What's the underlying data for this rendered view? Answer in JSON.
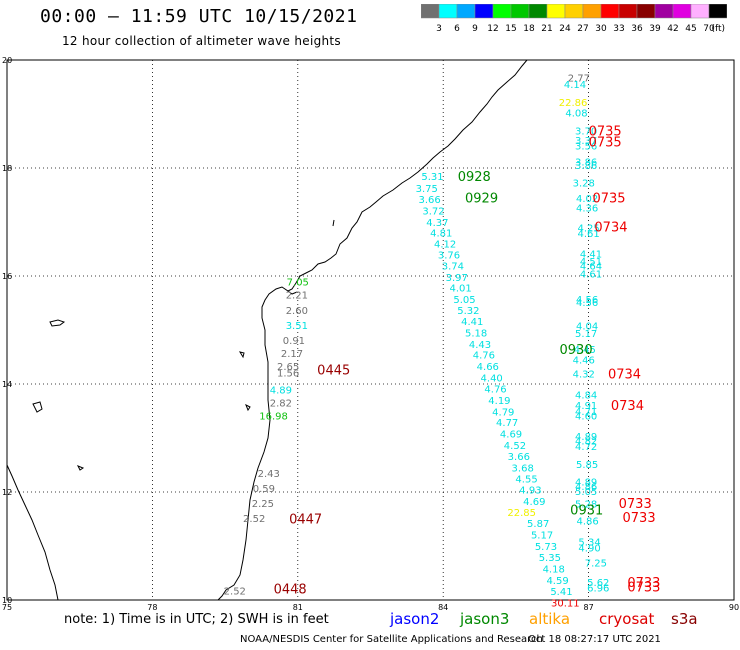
{
  "header": {
    "title": "00:00 – 11:59 UTC 10/15/2021",
    "subtitle": "12 hour collection of altimeter wave heights"
  },
  "legend": {
    "unit": "(ft)",
    "bins": [
      {
        "label": "3",
        "color": "#707070"
      },
      {
        "label": "6",
        "color": "#00ffff"
      },
      {
        "label": "9",
        "color": "#00a8ff"
      },
      {
        "label": "12",
        "color": "#0000ff"
      },
      {
        "label": "15",
        "color": "#00ff00"
      },
      {
        "label": "18",
        "color": "#00c800"
      },
      {
        "label": "21",
        "color": "#008800"
      },
      {
        "label": "24",
        "color": "#ffff00"
      },
      {
        "label": "27",
        "color": "#ffd000"
      },
      {
        "label": "30",
        "color": "#ffa000"
      },
      {
        "label": "33",
        "color": "#ff0000"
      },
      {
        "label": "36",
        "color": "#c80000"
      },
      {
        "label": "39",
        "color": "#880000"
      },
      {
        "label": "42",
        "color": "#a000a0"
      },
      {
        "label": "45",
        "color": "#e000e0"
      },
      {
        "label": "70",
        "color": "#ffb0ff"
      },
      {
        "label": "",
        "color": "#000000"
      }
    ]
  },
  "axes": {
    "x_ticks": [
      "75",
      "78",
      "81",
      "84",
      "87",
      "90"
    ],
    "y_ticks": [
      "10",
      "12",
      "14",
      "16",
      "18",
      "20"
    ],
    "x_range": [
      75,
      90
    ],
    "y_range": [
      10,
      20
    ]
  },
  "chart_data": {
    "type": "scatter",
    "colors": {
      "gray": "#707070",
      "cyan": "#00e0e0",
      "green": "#10c010",
      "yellow": "#f0f000",
      "red": "#ee0000",
      "darkgreen": "#008800",
      "darkred": "#990000"
    },
    "observations": [
      {
        "lon": 86.8,
        "lat": 19.6,
        "value": "2.77",
        "color": "gray"
      },
      {
        "lon": 86.72,
        "lat": 19.48,
        "value": "4.14",
        "color": "cyan"
      },
      {
        "lon": 86.68,
        "lat": 19.15,
        "value": "22.86",
        "color": "yellow"
      },
      {
        "lon": 86.75,
        "lat": 18.95,
        "value": "4.08",
        "color": "cyan"
      },
      {
        "lon": 86.95,
        "lat": 18.62,
        "value": "3.70",
        "color": "cyan"
      },
      {
        "lon": 86.95,
        "lat": 18.44,
        "value": "3.37",
        "color": "cyan"
      },
      {
        "lon": 86.95,
        "lat": 18.34,
        "value": "3.56",
        "color": "cyan"
      },
      {
        "lon": 86.95,
        "lat": 18.05,
        "value": "3.86",
        "color": "cyan"
      },
      {
        "lon": 86.95,
        "lat": 17.98,
        "value": "3.86",
        "color": "cyan"
      },
      {
        "lon": 86.9,
        "lat": 17.66,
        "value": "3.28",
        "color": "cyan"
      },
      {
        "lon": 86.97,
        "lat": 17.37,
        "value": "4.02",
        "color": "cyan"
      },
      {
        "lon": 86.97,
        "lat": 17.19,
        "value": "4.36",
        "color": "cyan"
      },
      {
        "lon": 87.0,
        "lat": 16.82,
        "value": "4.25",
        "color": "cyan"
      },
      {
        "lon": 87.0,
        "lat": 16.72,
        "value": "4.61",
        "color": "cyan"
      },
      {
        "lon": 87.05,
        "lat": 16.34,
        "value": "4.41",
        "color": "cyan"
      },
      {
        "lon": 87.05,
        "lat": 16.2,
        "value": "4.51",
        "color": "cyan"
      },
      {
        "lon": 87.05,
        "lat": 16.12,
        "value": "4.64",
        "color": "cyan"
      },
      {
        "lon": 87.05,
        "lat": 15.97,
        "value": "4.61",
        "color": "cyan"
      },
      {
        "lon": 86.97,
        "lat": 15.5,
        "value": "4.56",
        "color": "cyan"
      },
      {
        "lon": 86.97,
        "lat": 15.44,
        "value": "4.56",
        "color": "cyan"
      },
      {
        "lon": 86.97,
        "lat": 15.01,
        "value": "4.04",
        "color": "cyan"
      },
      {
        "lon": 86.95,
        "lat": 14.87,
        "value": "5.17",
        "color": "cyan"
      },
      {
        "lon": 86.92,
        "lat": 14.57,
        "value": "4.45",
        "color": "cyan"
      },
      {
        "lon": 86.9,
        "lat": 14.38,
        "value": "4.46",
        "color": "cyan"
      },
      {
        "lon": 86.9,
        "lat": 14.12,
        "value": "4.32",
        "color": "cyan"
      },
      {
        "lon": 86.95,
        "lat": 13.73,
        "value": "4.84",
        "color": "cyan"
      },
      {
        "lon": 86.95,
        "lat": 13.54,
        "value": "4.91",
        "color": "cyan"
      },
      {
        "lon": 86.95,
        "lat": 13.43,
        "value": "4.71",
        "color": "cyan"
      },
      {
        "lon": 86.95,
        "lat": 13.34,
        "value": "4.60",
        "color": "cyan"
      },
      {
        "lon": 86.95,
        "lat": 12.96,
        "value": "4.89",
        "color": "cyan"
      },
      {
        "lon": 86.95,
        "lat": 12.88,
        "value": "4.82",
        "color": "cyan"
      },
      {
        "lon": 86.95,
        "lat": 12.78,
        "value": "4.72",
        "color": "cyan"
      },
      {
        "lon": 86.97,
        "lat": 12.44,
        "value": "5.85",
        "color": "cyan"
      },
      {
        "lon": 86.95,
        "lat": 12.12,
        "value": "4.89",
        "color": "cyan"
      },
      {
        "lon": 86.95,
        "lat": 12.04,
        "value": "4.86",
        "color": "cyan"
      },
      {
        "lon": 86.95,
        "lat": 11.94,
        "value": "5.05",
        "color": "cyan"
      },
      {
        "lon": 86.95,
        "lat": 11.71,
        "value": "5.28",
        "color": "cyan"
      },
      {
        "lon": 86.98,
        "lat": 11.4,
        "value": "4.86",
        "color": "cyan"
      },
      {
        "lon": 87.02,
        "lat": 11.01,
        "value": "5.34",
        "color": "cyan"
      },
      {
        "lon": 87.02,
        "lat": 10.9,
        "value": "4.90",
        "color": "cyan"
      },
      {
        "lon": 87.15,
        "lat": 10.62,
        "value": "7.25",
        "color": "cyan"
      },
      {
        "lon": 87.2,
        "lat": 10.26,
        "value": "5.62",
        "color": "cyan"
      },
      {
        "lon": 87.2,
        "lat": 10.16,
        "value": "6.96",
        "color": "cyan"
      },
      {
        "lon": 83.78,
        "lat": 17.78,
        "value": "5.31",
        "color": "cyan"
      },
      {
        "lon": 83.66,
        "lat": 17.56,
        "value": "3.75",
        "color": "cyan"
      },
      {
        "lon": 83.72,
        "lat": 17.35,
        "value": "3.66",
        "color": "cyan"
      },
      {
        "lon": 83.8,
        "lat": 17.14,
        "value": "3.72",
        "color": "cyan"
      },
      {
        "lon": 83.88,
        "lat": 16.93,
        "value": "4.37",
        "color": "cyan"
      },
      {
        "lon": 83.96,
        "lat": 16.73,
        "value": "4.81",
        "color": "cyan"
      },
      {
        "lon": 84.04,
        "lat": 16.53,
        "value": "4.12",
        "color": "cyan"
      },
      {
        "lon": 84.12,
        "lat": 16.32,
        "value": "3.76",
        "color": "cyan"
      },
      {
        "lon": 84.2,
        "lat": 16.12,
        "value": "3.74",
        "color": "cyan"
      },
      {
        "lon": 84.28,
        "lat": 15.91,
        "value": "3.97",
        "color": "cyan"
      },
      {
        "lon": 84.36,
        "lat": 15.71,
        "value": "4.01",
        "color": "cyan"
      },
      {
        "lon": 84.44,
        "lat": 15.5,
        "value": "5.05",
        "color": "cyan"
      },
      {
        "lon": 84.52,
        "lat": 15.3,
        "value": "5.32",
        "color": "cyan"
      },
      {
        "lon": 84.6,
        "lat": 15.09,
        "value": "4.41",
        "color": "cyan"
      },
      {
        "lon": 84.68,
        "lat": 14.88,
        "value": "5.18",
        "color": "cyan"
      },
      {
        "lon": 84.76,
        "lat": 14.67,
        "value": "4.43",
        "color": "cyan"
      },
      {
        "lon": 84.84,
        "lat": 14.47,
        "value": "4.76",
        "color": "cyan"
      },
      {
        "lon": 84.92,
        "lat": 14.26,
        "value": "4.66",
        "color": "cyan"
      },
      {
        "lon": 85.0,
        "lat": 14.05,
        "value": "4.40",
        "color": "cyan"
      },
      {
        "lon": 85.08,
        "lat": 13.84,
        "value": "4.76",
        "color": "cyan"
      },
      {
        "lon": 85.16,
        "lat": 13.63,
        "value": "4.19",
        "color": "cyan"
      },
      {
        "lon": 85.24,
        "lat": 13.42,
        "value": "4.79",
        "color": "cyan"
      },
      {
        "lon": 85.32,
        "lat": 13.22,
        "value": "4.77",
        "color": "cyan"
      },
      {
        "lon": 85.4,
        "lat": 13.01,
        "value": "4.69",
        "color": "cyan"
      },
      {
        "lon": 85.48,
        "lat": 12.8,
        "value": "4.52",
        "color": "cyan"
      },
      {
        "lon": 85.56,
        "lat": 12.59,
        "value": "3.66",
        "color": "cyan"
      },
      {
        "lon": 85.64,
        "lat": 12.38,
        "value": "3.68",
        "color": "cyan"
      },
      {
        "lon": 85.72,
        "lat": 12.18,
        "value": "4.55",
        "color": "cyan"
      },
      {
        "lon": 85.8,
        "lat": 11.97,
        "value": "4.93",
        "color": "cyan"
      },
      {
        "lon": 85.88,
        "lat": 11.76,
        "value": "4.69",
        "color": "cyan"
      },
      {
        "lon": 85.62,
        "lat": 11.56,
        "value": "22.85",
        "color": "yellow"
      },
      {
        "lon": 85.96,
        "lat": 11.35,
        "value": "5.87",
        "color": "cyan"
      },
      {
        "lon": 86.04,
        "lat": 11.14,
        "value": "5.17",
        "color": "cyan"
      },
      {
        "lon": 86.12,
        "lat": 10.93,
        "value": "5.73",
        "color": "cyan"
      },
      {
        "lon": 86.2,
        "lat": 10.72,
        "value": "5.35",
        "color": "cyan"
      },
      {
        "lon": 86.28,
        "lat": 10.51,
        "value": "4.18",
        "color": "cyan"
      },
      {
        "lon": 86.36,
        "lat": 10.3,
        "value": "4.59",
        "color": "cyan"
      },
      {
        "lon": 86.44,
        "lat": 10.09,
        "value": "5.41",
        "color": "cyan"
      },
      {
        "lon": 86.52,
        "lat": 9.88,
        "value": "30.11",
        "color": "red"
      },
      {
        "lon": 81.0,
        "lat": 15.82,
        "value": "7.05",
        "color": "green"
      },
      {
        "lon": 80.98,
        "lat": 15.58,
        "value": "2.21",
        "color": "gray"
      },
      {
        "lon": 80.98,
        "lat": 15.3,
        "value": "2.60",
        "color": "gray"
      },
      {
        "lon": 80.98,
        "lat": 15.02,
        "value": "3.51",
        "color": "cyan"
      },
      {
        "lon": 80.92,
        "lat": 14.74,
        "value": "0.91",
        "color": "gray"
      },
      {
        "lon": 80.88,
        "lat": 14.5,
        "value": "2.17",
        "color": "gray"
      },
      {
        "lon": 80.8,
        "lat": 14.26,
        "value": "2.65",
        "color": "gray"
      },
      {
        "lon": 80.8,
        "lat": 14.14,
        "value": "1.56",
        "color": "gray"
      },
      {
        "lon": 80.65,
        "lat": 13.82,
        "value": "4.89",
        "color": "cyan"
      },
      {
        "lon": 80.65,
        "lat": 13.58,
        "value": "2.82",
        "color": "gray"
      },
      {
        "lon": 80.5,
        "lat": 13.34,
        "value": "16.98",
        "color": "green"
      },
      {
        "lon": 80.4,
        "lat": 12.28,
        "value": "2.43",
        "color": "gray"
      },
      {
        "lon": 80.3,
        "lat": 12.0,
        "value": "0.59",
        "color": "gray"
      },
      {
        "lon": 80.28,
        "lat": 11.72,
        "value": "2.25",
        "color": "gray"
      },
      {
        "lon": 80.1,
        "lat": 11.44,
        "value": "2.52",
        "color": "gray"
      },
      {
        "lon": 79.7,
        "lat": 10.1,
        "value": "2.52",
        "color": "gray"
      }
    ],
    "pass_times": [
      {
        "lon": 87.0,
        "lat": 18.6,
        "time": "0735",
        "color": "red"
      },
      {
        "lon": 87.0,
        "lat": 18.4,
        "time": "0735",
        "color": "red"
      },
      {
        "lon": 87.08,
        "lat": 17.36,
        "time": "0735",
        "color": "red"
      },
      {
        "lon": 87.12,
        "lat": 16.82,
        "time": "0734",
        "color": "red"
      },
      {
        "lon": 87.4,
        "lat": 14.1,
        "time": "0734",
        "color": "red"
      },
      {
        "lon": 87.46,
        "lat": 13.52,
        "time": "0734",
        "color": "red"
      },
      {
        "lon": 87.62,
        "lat": 11.7,
        "time": "0733",
        "color": "red"
      },
      {
        "lon": 87.7,
        "lat": 11.44,
        "time": "0733",
        "color": "red"
      },
      {
        "lon": 87.8,
        "lat": 10.24,
        "time": "0733",
        "color": "red"
      },
      {
        "lon": 87.8,
        "lat": 10.16,
        "time": "0733",
        "color": "red"
      },
      {
        "lon": 84.3,
        "lat": 17.76,
        "time": "0928",
        "color": "darkgreen"
      },
      {
        "lon": 84.45,
        "lat": 17.36,
        "time": "0929",
        "color": "darkgreen"
      },
      {
        "lon": 86.4,
        "lat": 14.56,
        "time": "0930",
        "color": "darkgreen"
      },
      {
        "lon": 86.62,
        "lat": 11.58,
        "time": "0931",
        "color": "darkgreen"
      },
      {
        "lon": 81.4,
        "lat": 14.18,
        "time": "0445",
        "color": "darkred"
      },
      {
        "lon": 80.82,
        "lat": 11.42,
        "time": "0447",
        "color": "darkred"
      },
      {
        "lon": 80.5,
        "lat": 10.12,
        "time": "0448",
        "color": "darkred"
      }
    ]
  },
  "note": "note: 1) Time is in UTC; 2) SWH is in feet",
  "satellites": [
    {
      "name": "jason2",
      "color": "#0000ff"
    },
    {
      "name": "jason3",
      "color": "#008800"
    },
    {
      "name": "altika",
      "color": "#ffa000"
    },
    {
      "name": "cryosat",
      "color": "#dd0000"
    },
    {
      "name": "s3a",
      "color": "#880000"
    }
  ],
  "footer": {
    "credit": "NOAA/NESDIS Center for Satellite Applications and Research",
    "generated": "Oct 18 08:27:17 UTC 2021"
  }
}
